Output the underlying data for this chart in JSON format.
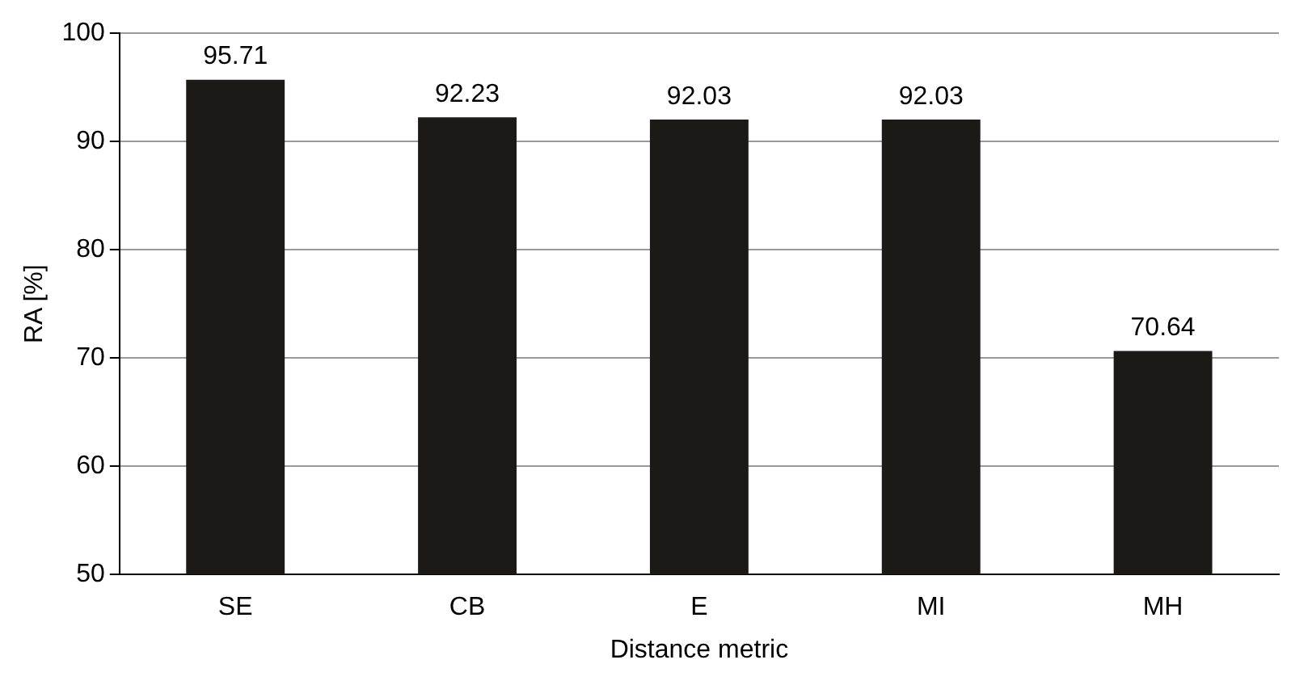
{
  "chart_data": {
    "type": "bar",
    "xlabel": "Distance metric",
    "ylabel": "RA [%]",
    "categories": [
      "SE",
      "CB",
      "E",
      "MI",
      "MH"
    ],
    "values": [
      95.71,
      92.23,
      92.03,
      92.03,
      70.64
    ],
    "color": "#1c1a17",
    "ylim": [
      50,
      100
    ],
    "yticks": [
      50,
      60,
      70,
      80,
      90,
      100
    ],
    "grid": "y",
    "legend": false,
    "data_labels": true
  }
}
